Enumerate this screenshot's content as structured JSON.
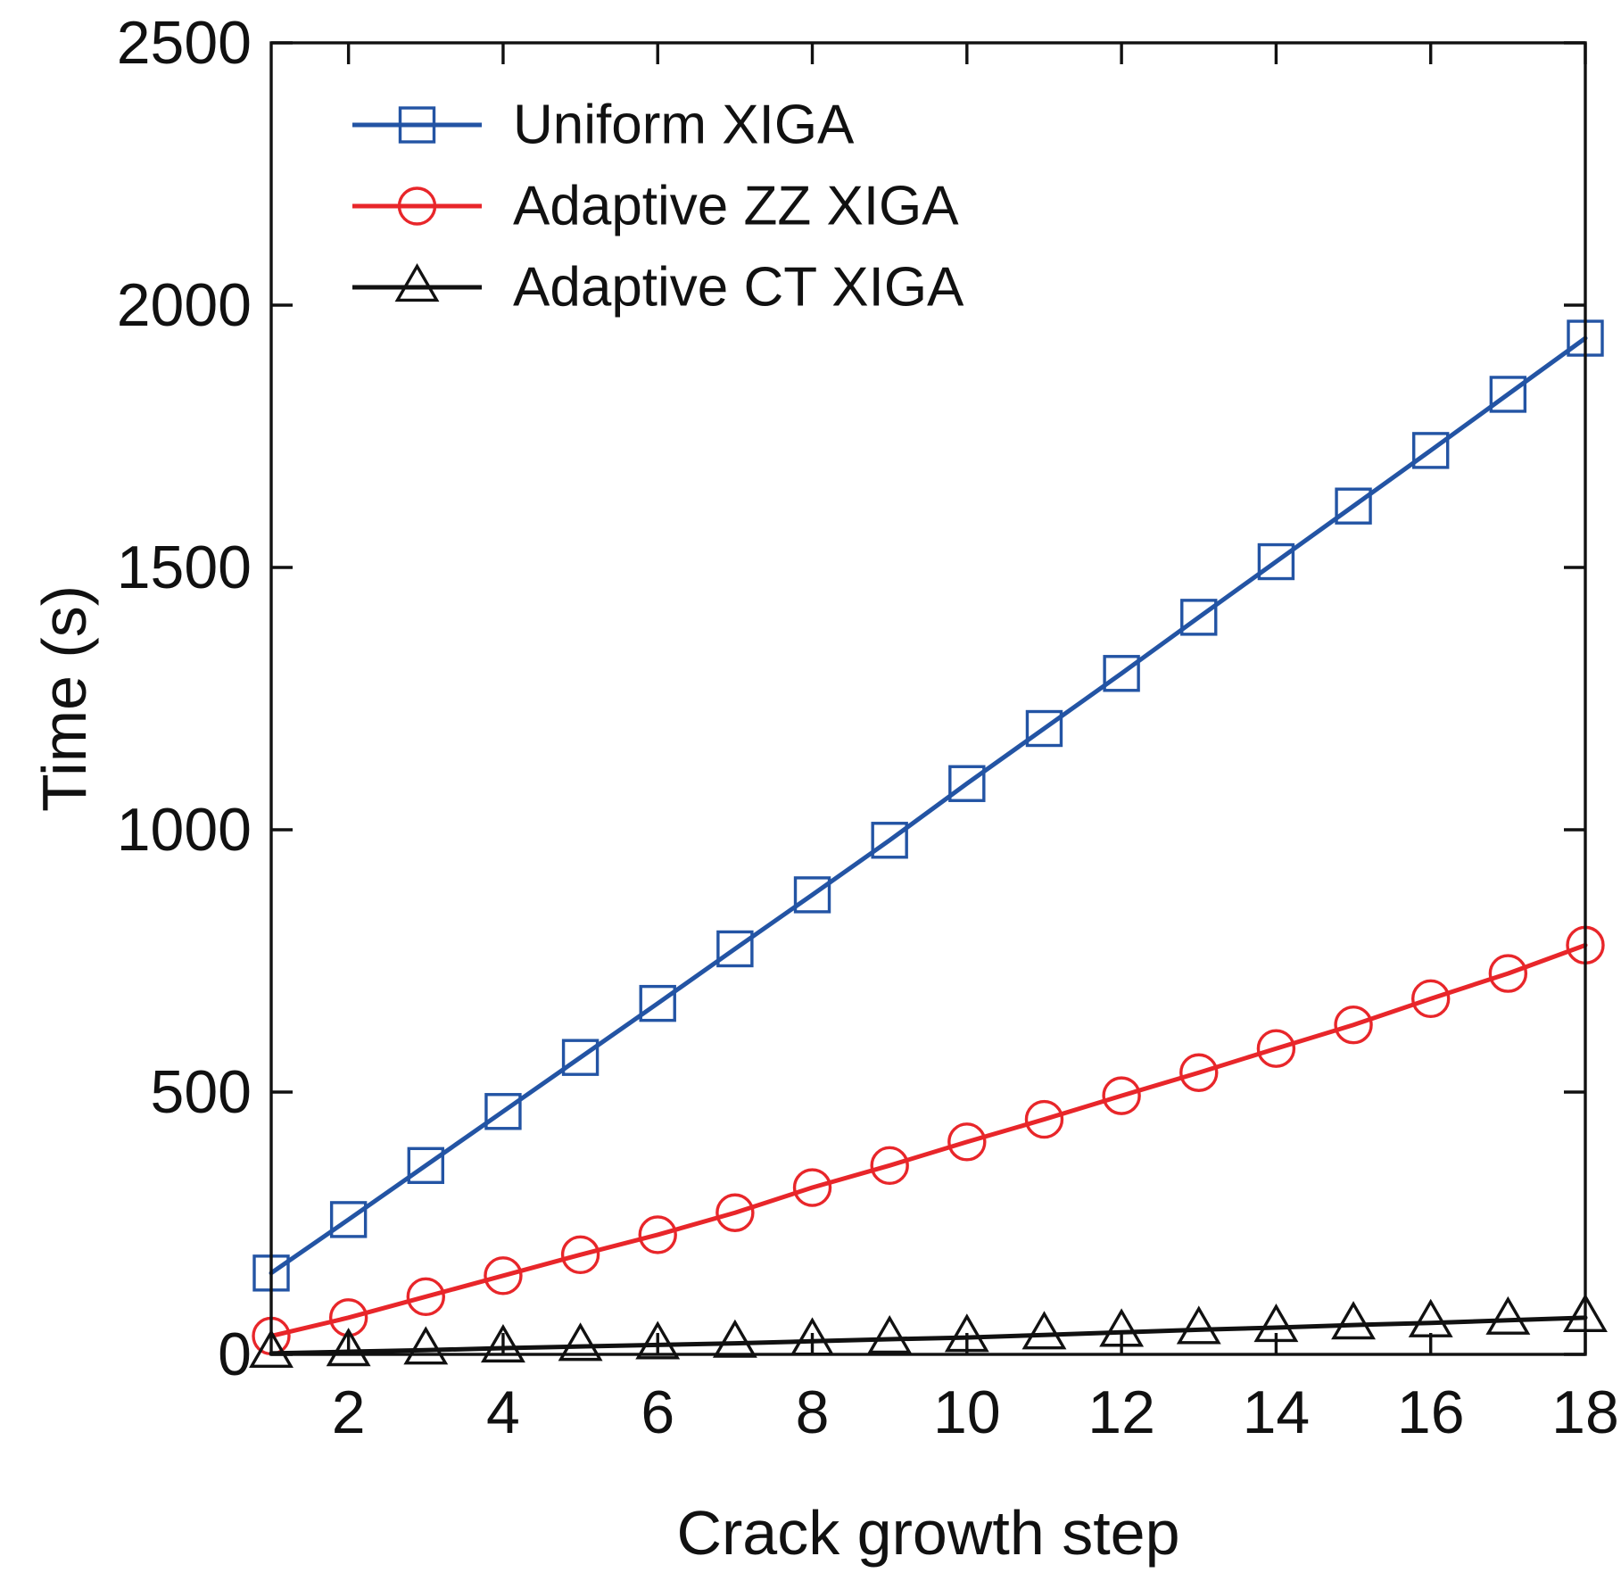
{
  "chart_data": {
    "type": "line",
    "title": "",
    "xlabel": "Crack growth step",
    "ylabel": "Time (s)",
    "xlim": [
      1,
      18
    ],
    "ylim": [
      0,
      2500
    ],
    "xticks": [
      2,
      4,
      6,
      8,
      10,
      12,
      14,
      16,
      18
    ],
    "yticks": [
      0,
      500,
      1000,
      1500,
      2000,
      2500
    ],
    "grid": false,
    "legend_position": "top-left",
    "x": [
      1,
      2,
      3,
      4,
      5,
      6,
      7,
      8,
      9,
      10,
      11,
      12,
      13,
      14,
      15,
      16,
      17,
      18
    ],
    "series": [
      {
        "name": "Uniform XIGA",
        "color": "#2354a4",
        "marker": "square",
        "values": [
          155,
          257,
          360,
          463,
          566,
          669,
          773,
          876,
          980,
          1088,
          1193,
          1298,
          1405,
          1511,
          1617,
          1723,
          1830,
          1937
        ]
      },
      {
        "name": "Adaptive ZZ XIGA",
        "color": "#e8262a",
        "marker": "circle",
        "values": [
          35,
          70,
          110,
          150,
          190,
          228,
          270,
          318,
          360,
          405,
          448,
          493,
          537,
          583,
          628,
          678,
          726,
          780
        ]
      },
      {
        "name": "Adaptive CT XIGA",
        "color": "#111111",
        "marker": "triangle",
        "values": [
          2,
          5,
          8,
          12,
          15,
          18,
          21,
          25,
          29,
          32,
          37,
          42,
          47,
          51,
          56,
          60,
          65,
          70
        ]
      }
    ]
  }
}
